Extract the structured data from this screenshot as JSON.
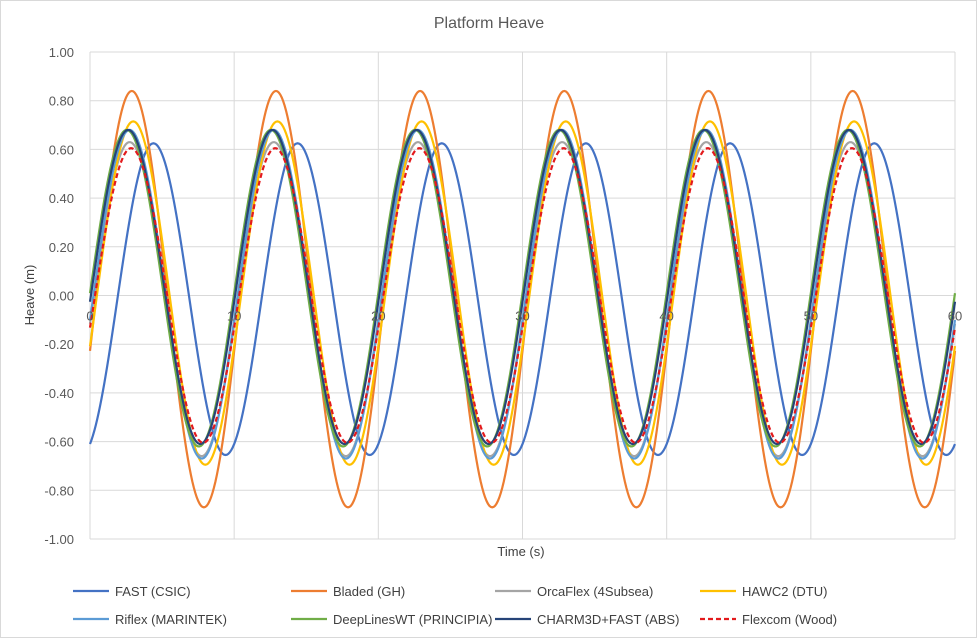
{
  "chart_data": {
    "type": "line",
    "title": "Platform Heave",
    "xlabel": "Time (s)",
    "ylabel": "Heave (m)",
    "xlim": [
      0,
      60
    ],
    "ylim": [
      -1.0,
      1.0
    ],
    "x_ticks": [
      "0",
      "10",
      "20",
      "30",
      "40",
      "50",
      "60"
    ],
    "y_ticks": [
      "1.00",
      "0.80",
      "0.60",
      "0.40",
      "0.20",
      "0.00",
      "-0.20",
      "-0.40",
      "-0.60",
      "-0.80",
      "-1.00"
    ],
    "grid": true,
    "legend_position": "bottom",
    "period_s": 10,
    "series": [
      {
        "name": "FAST (CSIC)",
        "color": "#4472c4",
        "dashed": false,
        "amplitude": 0.64,
        "offset": -0.015,
        "peak_time_s": 4.4
      },
      {
        "name": "Bladed (GH)",
        "color": "#ed7d31",
        "dashed": false,
        "amplitude": 0.855,
        "offset": -0.015,
        "peak_time_s": 2.9
      },
      {
        "name": "OrcaFlex (4Subsea)",
        "color": "#a5a5a5",
        "dashed": false,
        "amplitude": 0.645,
        "offset": -0.015,
        "peak_time_s": 2.75
      },
      {
        "name": "HAWC2 (DTU)",
        "color": "#ffc000",
        "dashed": false,
        "amplitude": 0.705,
        "offset": 0.01,
        "peak_time_s": 3.0
      },
      {
        "name": "Riflex (MARINTEK)",
        "color": "#5b9bd5",
        "dashed": false,
        "amplitude": 0.675,
        "offset": 0.005,
        "peak_time_s": 2.75
      },
      {
        "name": "DeepLinesWT (PRINCIPIA)",
        "color": "#70ad47",
        "dashed": false,
        "amplitude": 0.65,
        "offset": 0.03,
        "peak_time_s": 2.55
      },
      {
        "name": "CHARM3D+FAST (ABS)",
        "color": "#264478",
        "dashed": false,
        "amplitude": 0.645,
        "offset": 0.035,
        "peak_time_s": 2.65
      },
      {
        "name": "Flexcom (Wood)",
        "color": "#e31a1c",
        "dashed": true,
        "amplitude": 0.605,
        "offset": 0.0,
        "peak_time_s": 2.85
      }
    ]
  }
}
